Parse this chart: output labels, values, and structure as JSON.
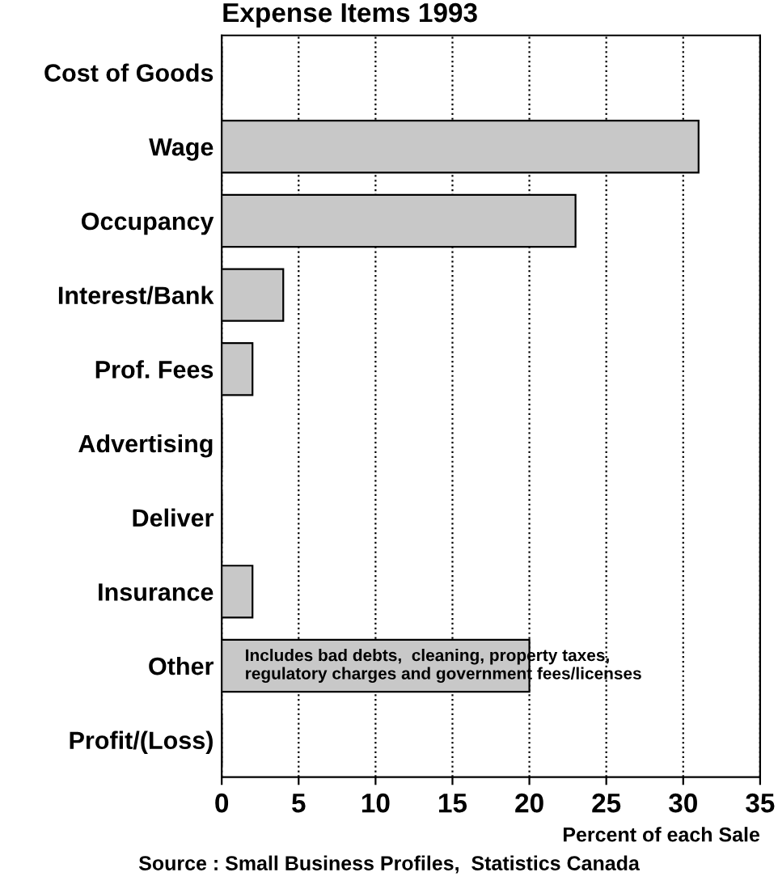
{
  "chart_data": {
    "type": "bar",
    "orientation": "horizontal",
    "title": "Expense Items 1993",
    "xlabel": "Percent of each Sale",
    "categories": [
      "Cost of Goods",
      "Wage",
      "Occupancy",
      "Interest/Bank",
      "Prof. Fees",
      "Advertising",
      "Deliver",
      "Insurance",
      "Other",
      "Profit/(Loss)"
    ],
    "values": [
      0,
      31,
      23,
      4,
      2,
      0,
      0,
      2,
      20,
      0
    ],
    "color": "#c8c8c8",
    "xlim": [
      0,
      35
    ],
    "xticks": [
      0,
      5,
      10,
      15,
      20,
      25,
      30,
      35
    ],
    "grid": "x",
    "annotations": [
      "Includes bad debts,  cleaning, property taxes,\nregulatory charges and government fees/licenses",
      "Source : Small Business Profiles,  Statistics Canada"
    ]
  }
}
